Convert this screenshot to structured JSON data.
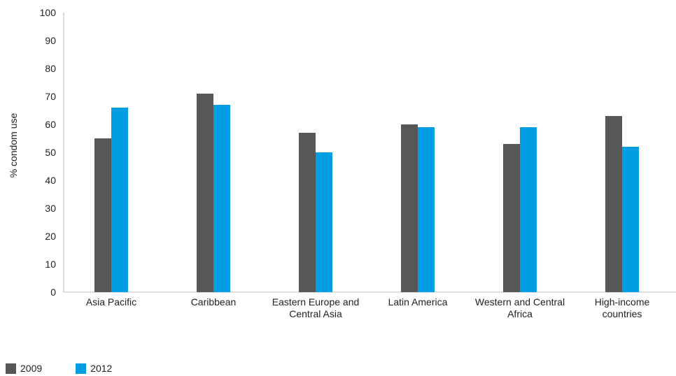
{
  "chart_data": {
    "type": "bar",
    "title": "",
    "xlabel": "",
    "ylabel": "% condom use",
    "ylim": [
      0,
      100
    ],
    "yticks": [
      0,
      10,
      20,
      30,
      40,
      50,
      60,
      70,
      80,
      90,
      100
    ],
    "grid": false,
    "legend_position": "bottom-left",
    "categories": [
      [
        "Asia Pacific"
      ],
      [
        "Caribbean"
      ],
      [
        "Eastern Europe and",
        "Central Asia"
      ],
      [
        "Latin America"
      ],
      [
        "Western and Central",
        "Africa"
      ],
      [
        "High-income",
        "countries"
      ]
    ],
    "series": [
      {
        "name": "2009",
        "color": "#575757",
        "values": [
          55,
          71,
          57,
          60,
          53,
          63
        ]
      },
      {
        "name": "2012",
        "color": "#009fe3",
        "values": [
          66,
          67,
          50,
          59,
          59,
          52
        ]
      }
    ]
  }
}
